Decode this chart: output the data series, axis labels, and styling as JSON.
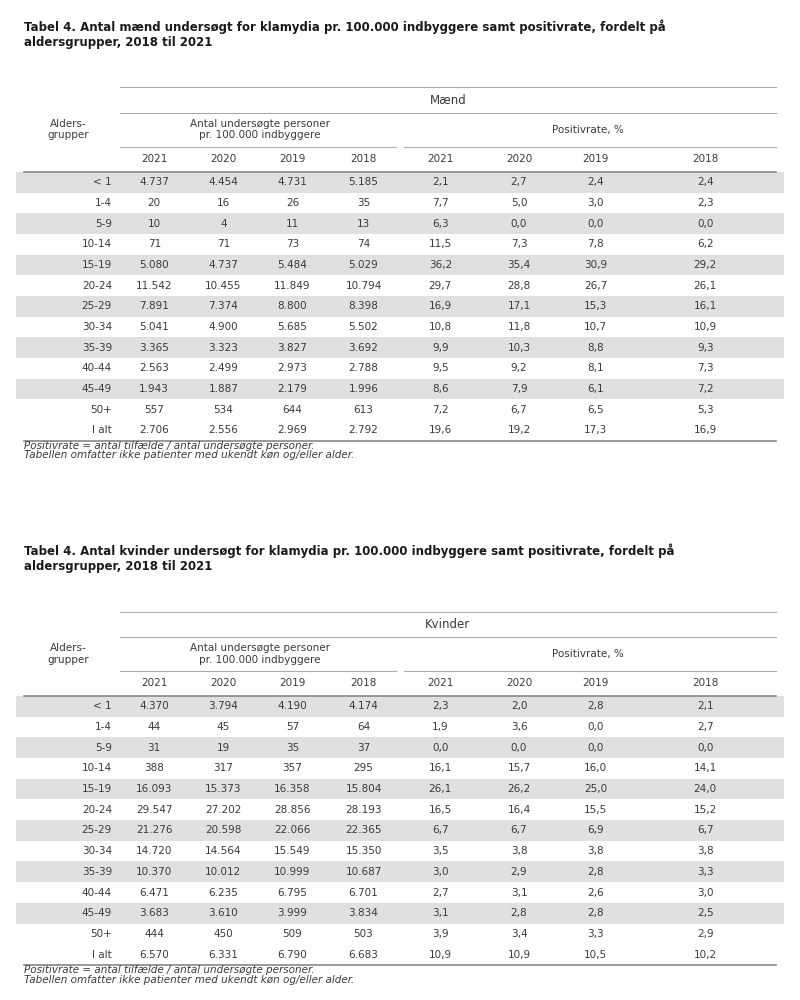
{
  "title1": "Tabel 4. Antal mænd undersøgt for klamydia pr. 100.000 indbyggere samt positivrate, fordelt på\naldersgrupper, 2018 til 2021",
  "title2": "Tabel 4. Antal kvinder undersøgt for klamydia pr. 100.000 indbyggere samt positivrate, fordelt på\naldersgrupper, 2018 til 2021",
  "group_header1": "Mænd",
  "group_header2": "Kvinder",
  "years": [
    "2021",
    "2020",
    "2019",
    "2018"
  ],
  "age_groups": [
    "< 1",
    "1-4",
    "5-9",
    "10-14",
    "15-19",
    "20-24",
    "25-29",
    "30-34",
    "35-39",
    "40-44",
    "45-49",
    "50+",
    "I alt"
  ],
  "men_antal": [
    [
      "4.737",
      "4.454",
      "4.731",
      "5.185"
    ],
    [
      "20",
      "16",
      "26",
      "35"
    ],
    [
      "10",
      "4",
      "11",
      "13"
    ],
    [
      "71",
      "71",
      "73",
      "74"
    ],
    [
      "5.080",
      "4.737",
      "5.484",
      "5.029"
    ],
    [
      "11.542",
      "10.455",
      "11.849",
      "10.794"
    ],
    [
      "7.891",
      "7.374",
      "8.800",
      "8.398"
    ],
    [
      "5.041",
      "4.900",
      "5.685",
      "5.502"
    ],
    [
      "3.365",
      "3.323",
      "3.827",
      "3.692"
    ],
    [
      "2.563",
      "2.499",
      "2.973",
      "2.788"
    ],
    [
      "1.943",
      "1.887",
      "2.179",
      "1.996"
    ],
    [
      "557",
      "534",
      "644",
      "613"
    ],
    [
      "2.706",
      "2.556",
      "2.969",
      "2.792"
    ]
  ],
  "men_pos": [
    [
      "2,1",
      "2,7",
      "2,4",
      "2,4"
    ],
    [
      "7,7",
      "5,0",
      "3,0",
      "2,3"
    ],
    [
      "6,3",
      "0,0",
      "0,0",
      "0,0"
    ],
    [
      "11,5",
      "7,3",
      "7,8",
      "6,2"
    ],
    [
      "36,2",
      "35,4",
      "30,9",
      "29,2"
    ],
    [
      "29,7",
      "28,8",
      "26,7",
      "26,1"
    ],
    [
      "16,9",
      "17,1",
      "15,3",
      "16,1"
    ],
    [
      "10,8",
      "11,8",
      "10,7",
      "10,9"
    ],
    [
      "9,9",
      "10,3",
      "8,8",
      "9,3"
    ],
    [
      "9,5",
      "9,2",
      "8,1",
      "7,3"
    ],
    [
      "8,6",
      "7,9",
      "6,1",
      "7,2"
    ],
    [
      "7,2",
      "6,7",
      "6,5",
      "5,3"
    ],
    [
      "19,6",
      "19,2",
      "17,3",
      "16,9"
    ]
  ],
  "women_antal": [
    [
      "4.370",
      "3.794",
      "4.190",
      "4.174"
    ],
    [
      "44",
      "45",
      "57",
      "64"
    ],
    [
      "31",
      "19",
      "35",
      "37"
    ],
    [
      "388",
      "317",
      "357",
      "295"
    ],
    [
      "16.093",
      "15.373",
      "16.358",
      "15.804"
    ],
    [
      "29.547",
      "27.202",
      "28.856",
      "28.193"
    ],
    [
      "21.276",
      "20.598",
      "22.066",
      "22.365"
    ],
    [
      "14.720",
      "14.564",
      "15.549",
      "15.350"
    ],
    [
      "10.370",
      "10.012",
      "10.999",
      "10.687"
    ],
    [
      "6.471",
      "6.235",
      "6.795",
      "6.701"
    ],
    [
      "3.683",
      "3.610",
      "3.999",
      "3.834"
    ],
    [
      "444",
      "450",
      "509",
      "503"
    ],
    [
      "6.570",
      "6.331",
      "6.790",
      "6.683"
    ]
  ],
  "women_pos": [
    [
      "2,3",
      "2,0",
      "2,8",
      "2,1"
    ],
    [
      "1,9",
      "3,6",
      "0,0",
      "2,7"
    ],
    [
      "0,0",
      "0,0",
      "0,0",
      "0,0"
    ],
    [
      "16,1",
      "15,7",
      "16,0",
      "14,1"
    ],
    [
      "26,1",
      "26,2",
      "25,0",
      "24,0"
    ],
    [
      "16,5",
      "16,4",
      "15,5",
      "15,2"
    ],
    [
      "6,7",
      "6,7",
      "6,9",
      "6,7"
    ],
    [
      "3,5",
      "3,8",
      "3,8",
      "3,8"
    ],
    [
      "3,0",
      "2,9",
      "2,8",
      "3,3"
    ],
    [
      "2,7",
      "3,1",
      "2,6",
      "3,0"
    ],
    [
      "3,1",
      "2,8",
      "2,8",
      "2,5"
    ],
    [
      "3,9",
      "3,4",
      "3,3",
      "2,9"
    ],
    [
      "10,9",
      "10,9",
      "10,5",
      "10,2"
    ]
  ],
  "footnote1": "Positivrate = antal tilfælde / antal undersøgte personer.",
  "footnote2": "Tabellen omfatter ikke patienter med ukendt køn og/eller alder.",
  "bg_color_odd": "#e0e0e0",
  "bg_color_even": "#ffffff",
  "text_color": "#3a3a3a",
  "title_color": "#1a1a1a",
  "line_color": "#aaaaaa",
  "bold_line_color": "#888888"
}
